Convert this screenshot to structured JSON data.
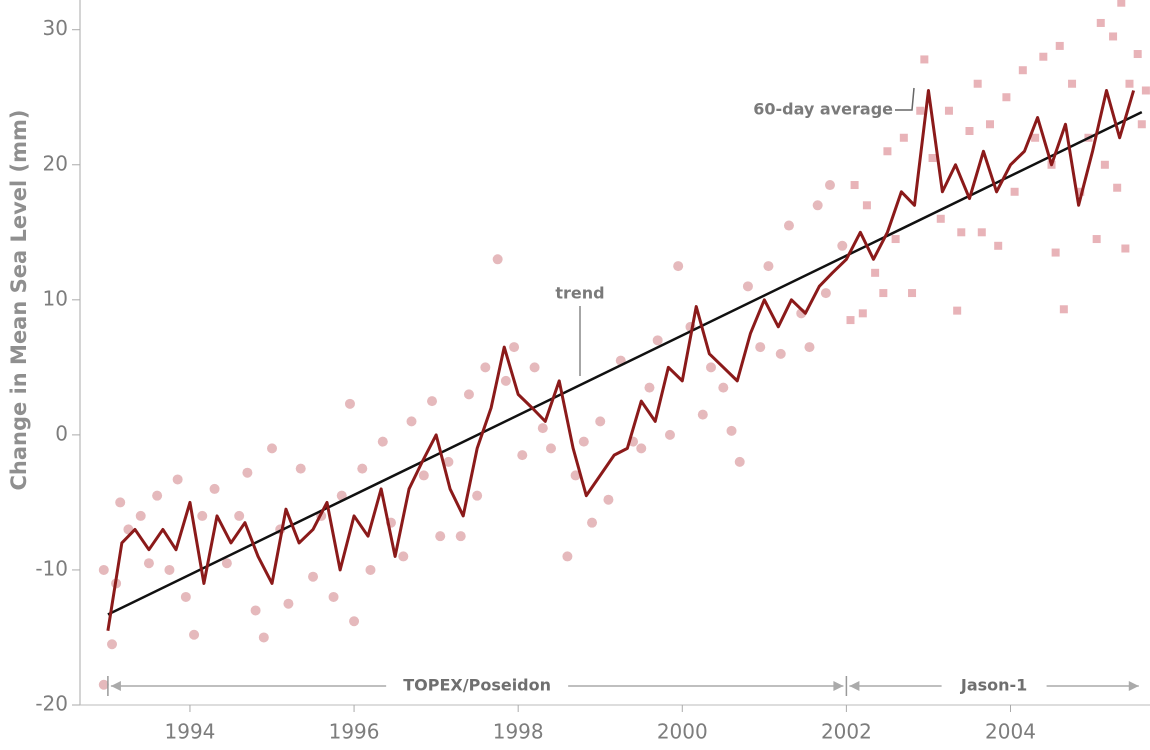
{
  "chart_data": {
    "type": "scatter",
    "ylabel": "Change in Mean Sea Level (mm)",
    "xlim": [
      1992.66,
      2005.7
    ],
    "ylim": [
      -20,
      32.2
    ],
    "xticks": [
      1994,
      1996,
      1998,
      2000,
      2002,
      2004
    ],
    "yticks": [
      -20,
      -10,
      0,
      10,
      20,
      30
    ],
    "missions": [
      {
        "name": "TOPEX/Poseidon",
        "start": 1993,
        "end": 2002
      },
      {
        "name": "Jason-1",
        "start": 2002,
        "end": 2005.6
      }
    ],
    "series": [
      {
        "kind": "points",
        "marker": "circle",
        "color": "#e5b9bc",
        "x": [
          1992.95,
          1992.95,
          1993.05,
          1993.1,
          1993.15,
          1993.25,
          1993.4,
          1993.5,
          1993.6,
          1993.75,
          1993.85,
          1993.95,
          1994.05,
          1994.15,
          1994.3,
          1994.45,
          1994.6,
          1994.7,
          1994.8,
          1994.9,
          1995.0,
          1995.1,
          1995.2,
          1995.35,
          1995.5,
          1995.6,
          1995.75,
          1995.85,
          1995.95,
          1996.0,
          1996.1,
          1996.2,
          1996.35,
          1996.45,
          1996.6,
          1996.7,
          1996.85,
          1996.95,
          1997.05,
          1997.15,
          1997.3,
          1997.4,
          1997.5,
          1997.6,
          1997.75,
          1997.85,
          1997.95,
          1998.05,
          1998.2,
          1998.3,
          1998.4,
          1998.6,
          1998.7,
          1998.8,
          1998.9,
          1999.0,
          1999.1,
          1999.25,
          1999.4,
          1999.5,
          1999.6,
          1999.7,
          1999.85,
          1999.95,
          2000.1,
          2000.25,
          2000.35,
          2000.5,
          2000.6,
          2000.7,
          2000.8,
          2000.95,
          2001.05,
          2001.2,
          2001.3,
          2001.45,
          2001.55,
          2001.65,
          2001.75,
          2001.8,
          2001.95
        ],
        "values": [
          -18.5,
          -10,
          -15.5,
          -11,
          -5,
          -7,
          -6,
          -9.5,
          -4.5,
          -10,
          -3.3,
          -12,
          -14.8,
          -6,
          -4,
          -9.5,
          -6,
          -2.8,
          -13,
          -15,
          -1,
          -7,
          -12.5,
          -2.5,
          -10.5,
          -6,
          -12,
          -4.5,
          2.3,
          -13.8,
          -2.5,
          -10,
          -0.5,
          -6.5,
          -9,
          1,
          -3,
          2.5,
          -7.5,
          -2,
          -7.5,
          3,
          -4.5,
          5,
          13,
          4,
          6.5,
          -1.5,
          5,
          0.5,
          -1,
          -9,
          -3,
          -0.5,
          -6.5,
          1,
          -4.8,
          5.5,
          -0.5,
          -1,
          3.5,
          7,
          0,
          12.5,
          8,
          1.5,
          5,
          3.5,
          0.3,
          -2,
          11,
          6.5,
          12.5,
          6,
          15.5,
          9,
          6.5,
          17,
          10.5,
          18.5,
          14
        ]
      },
      {
        "kind": "points",
        "marker": "square",
        "color": "#e8b3b8",
        "x": [
          2002.05,
          2002.1,
          2002.2,
          2002.25,
          2002.35,
          2002.45,
          2002.5,
          2002.6,
          2002.7,
          2002.8,
          2002.9,
          2002.95,
          2003.05,
          2003.15,
          2003.25,
          2003.35,
          2003.4,
          2003.5,
          2003.6,
          2003.65,
          2003.75,
          2003.85,
          2003.95,
          2004.05,
          2004.15,
          2004.3,
          2004.4,
          2004.5,
          2004.55,
          2004.6,
          2004.65,
          2004.75,
          2004.85,
          2004.95,
          2005.05,
          2005.1,
          2005.15,
          2005.25,
          2005.3,
          2005.35,
          2005.4,
          2005.45,
          2005.55,
          2005.6,
          2005.65
        ],
        "values": [
          8.5,
          18.5,
          9,
          17,
          12,
          10.5,
          21,
          14.5,
          22,
          10.5,
          24,
          27.8,
          20.5,
          16,
          24,
          9.2,
          15,
          22.5,
          26,
          15,
          23,
          14,
          25,
          18,
          27,
          22,
          28,
          20,
          13.5,
          28.8,
          9.3,
          26,
          18,
          22,
          14.5,
          30.5,
          20,
          29.5,
          18.3,
          32,
          13.8,
          26,
          28.2,
          23,
          25.5
        ]
      },
      {
        "kind": "line",
        "name": "60-day average",
        "color": "#8b1a1a",
        "x": [
          1993.0,
          1993.17,
          1993.33,
          1993.5,
          1993.67,
          1993.83,
          1994.0,
          1994.17,
          1994.33,
          1994.5,
          1994.67,
          1994.83,
          1995.0,
          1995.17,
          1995.33,
          1995.5,
          1995.67,
          1995.83,
          1996.0,
          1996.17,
          1996.33,
          1996.5,
          1996.67,
          1996.83,
          1997.0,
          1997.17,
          1997.33,
          1997.5,
          1997.67,
          1997.83,
          1998.0,
          1998.17,
          1998.33,
          1998.5,
          1998.67,
          1998.83,
          1999.0,
          1999.17,
          1999.33,
          1999.5,
          1999.67,
          1999.83,
          2000.0,
          2000.17,
          2000.33,
          2000.5,
          2000.67,
          2000.83,
          2001.0,
          2001.17,
          2001.33,
          2001.5,
          2001.67,
          2001.83,
          2002.0,
          2002.17,
          2002.33,
          2002.5,
          2002.67,
          2002.83,
          2003.0,
          2003.17,
          2003.33,
          2003.5,
          2003.67,
          2003.83,
          2004.0,
          2004.17,
          2004.33,
          2004.5,
          2004.67,
          2004.83,
          2005.0,
          2005.17,
          2005.33,
          2005.5
        ],
        "values": [
          -14.5,
          -8,
          -7,
          -8.5,
          -7,
          -8.5,
          -5,
          -11,
          -6,
          -8,
          -6.5,
          -9,
          -11,
          -5.5,
          -8,
          -7,
          -5,
          -10,
          -6,
          -7.5,
          -4,
          -9,
          -4,
          -2,
          0,
          -4,
          -6,
          -1,
          2,
          6.5,
          3,
          2,
          1,
          4,
          -1,
          -4.5,
          -3,
          -1.5,
          -1,
          2.5,
          1,
          5,
          4,
          9.5,
          6,
          5,
          4,
          7.5,
          10,
          8,
          10,
          9,
          11,
          12,
          13,
          15,
          13,
          15,
          18,
          17,
          25.5,
          18,
          20,
          17.5,
          21,
          18,
          20,
          21,
          23.5,
          20,
          23,
          17,
          21,
          25.5,
          22,
          25.5
        ]
      },
      {
        "kind": "line",
        "name": "trend",
        "color": "#111111",
        "x": [
          1993.0,
          2005.6
        ],
        "values": [
          -13.3,
          23.9
        ]
      }
    ]
  }
}
